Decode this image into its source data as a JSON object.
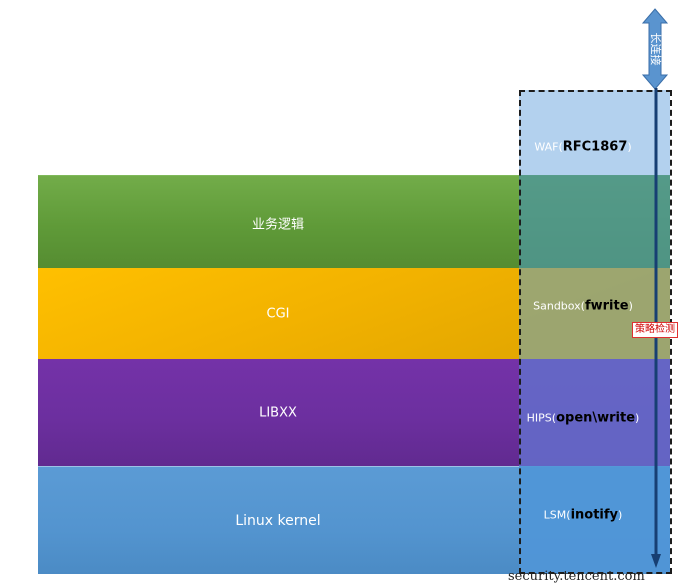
{
  "layers": [
    {
      "label": "业务逻辑"
    },
    {
      "label": "CGI"
    },
    {
      "label": "LIBXX"
    },
    {
      "label": "Linux kernel"
    }
  ],
  "controls": {
    "waf": {
      "prefix": "WAF(",
      "key": "RFC1867",
      "suffix": ")"
    },
    "sandbox": {
      "prefix": "Sandbox(",
      "key": "fwrite",
      "suffix": ")"
    },
    "hips": {
      "prefix": "HIPS(",
      "key": "open\\write",
      "suffix": ")"
    },
    "lsm": {
      "prefix": "LSM(",
      "key": "inotify",
      "suffix": ")"
    }
  },
  "side_label": "长连接",
  "policy_label": "策略检测",
  "watermark": "security.tencent.com",
  "colors": {
    "green": "#6aa43e",
    "yellow": "#ffc000",
    "purple": "#7030a0",
    "blue": "#5b9bd5",
    "arrow": "#173f73",
    "policy_red": "#d00000"
  }
}
